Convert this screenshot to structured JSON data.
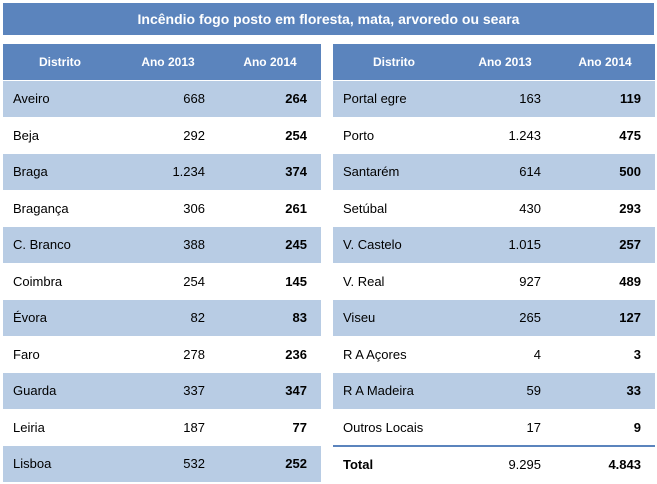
{
  "title": "Incêndio fogo posto em floresta, mata, arvoredo ou  seara",
  "headers": {
    "district": "Distrito",
    "y2013": "Ano 2013",
    "y2014": "Ano 2014"
  },
  "left_rows": [
    {
      "district": "Aveiro",
      "y2013": "668",
      "y2014": "264"
    },
    {
      "district": "Beja",
      "y2013": "292",
      "y2014": "254"
    },
    {
      "district": "Braga",
      "y2013": "1.234",
      "y2014": "374"
    },
    {
      "district": "Bragança",
      "y2013": "306",
      "y2014": "261"
    },
    {
      "district": "C. Branco",
      "y2013": "388",
      "y2014": "245"
    },
    {
      "district": "Coimbra",
      "y2013": "254",
      "y2014": "145"
    },
    {
      "district": "Évora",
      "y2013": "82",
      "y2014": "83"
    },
    {
      "district": "Faro",
      "y2013": "278",
      "y2014": "236"
    },
    {
      "district": "Guarda",
      "y2013": "337",
      "y2014": "347"
    },
    {
      "district": "Leiria",
      "y2013": "187",
      "y2014": "77"
    },
    {
      "district": "Lisboa",
      "y2013": "532",
      "y2014": "252"
    }
  ],
  "right_rows": [
    {
      "district": "Portal egre",
      "y2013": "163",
      "y2014": "119"
    },
    {
      "district": "Porto",
      "y2013": "1.243",
      "y2014": "475"
    },
    {
      "district": "Santarém",
      "y2013": "614",
      "y2014": "500"
    },
    {
      "district": "Setúbal",
      "y2013": "430",
      "y2014": "293"
    },
    {
      "district": "V. Castelo",
      "y2013": "1.015",
      "y2014": "257"
    },
    {
      "district": "V. Real",
      "y2013": "927",
      "y2014": "489"
    },
    {
      "district": "Viseu",
      "y2013": "265",
      "y2014": "127"
    },
    {
      "district": "R A Açores",
      "y2013": "4",
      "y2014": "3"
    },
    {
      "district": "R A Madeira",
      "y2013": "59",
      "y2014": "33"
    },
    {
      "district": "Outros Locais",
      "y2013": "17",
      "y2014": "9"
    }
  ],
  "total": {
    "district": "Total",
    "y2013": "9.295",
    "y2014": "4.843"
  },
  "colors": {
    "header": "#5b84bd",
    "shade": "#b8cce4",
    "header_text": "#ffffff"
  }
}
